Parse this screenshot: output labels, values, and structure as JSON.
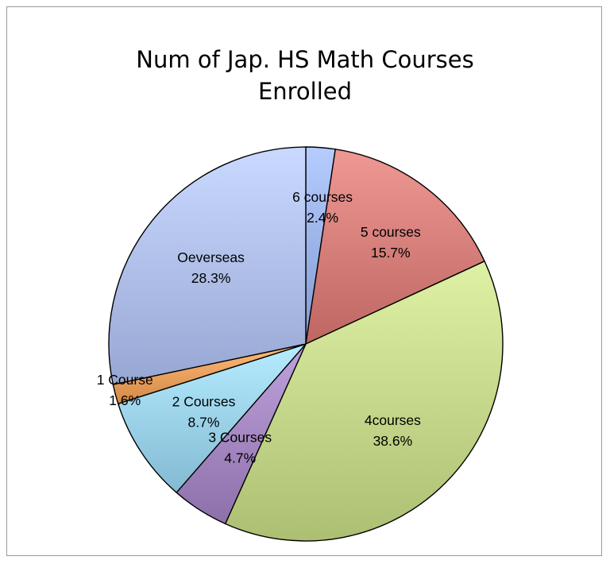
{
  "chart_data": {
    "type": "pie",
    "title_lines": [
      "Num of Jap. HS Math Courses",
      "Enrolled"
    ],
    "start": "top",
    "direction": "clockwise",
    "legend": "none",
    "slices": [
      {
        "name": "6 courses",
        "value": 2.4,
        "pct_label": "2.4%",
        "color": "#9fb6ee"
      },
      {
        "name": "5 courses",
        "value": 15.7,
        "pct_label": "15.7%",
        "color": "#d9827e"
      },
      {
        "name": "4courses",
        "value": 38.6,
        "pct_label": "38.6%",
        "color": "#c8db8e"
      },
      {
        "name": "3 Courses",
        "value": 4.7,
        "pct_label": "4.7%",
        "color": "#a98cc6"
      },
      {
        "name": "2 Courses",
        "value": 8.7,
        "pct_label": "8.7%",
        "color": "#9fd6ef"
      },
      {
        "name": "1 Course",
        "value": 1.6,
        "pct_label": "1.6%",
        "color": "#f0a563"
      },
      {
        "name": "Oeverseas",
        "value": 28.3,
        "pct_label": "28.3%",
        "color": "#b3c3ef"
      }
    ]
  }
}
